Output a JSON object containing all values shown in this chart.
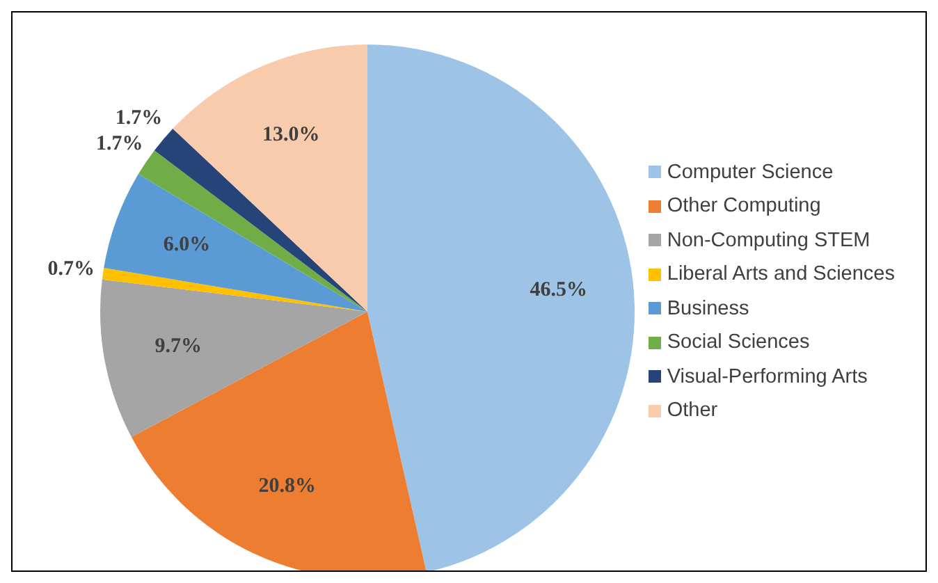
{
  "chart_data": {
    "type": "pie",
    "categories": [
      "Computer Science",
      "Other Computing",
      "Non-Computing STEM",
      "Liberal Arts and Sciences",
      "Business",
      "Social Sciences",
      "Visual-Performing Arts",
      "Other"
    ],
    "values": [
      46.5,
      20.8,
      9.7,
      0.7,
      6.0,
      1.7,
      1.7,
      13.0
    ],
    "colors": [
      "#9dc3e6",
      "#ed7d31",
      "#a5a5a5",
      "#ffc000",
      "#5b9bd5",
      "#70ad47",
      "#264478",
      "#f8cbad"
    ],
    "value_labels": [
      "46.5%",
      "20.8%",
      "9.7%",
      "0.7%",
      "6.0%",
      "1.7%",
      "1.7%",
      "13.0%"
    ],
    "legend": "right"
  }
}
